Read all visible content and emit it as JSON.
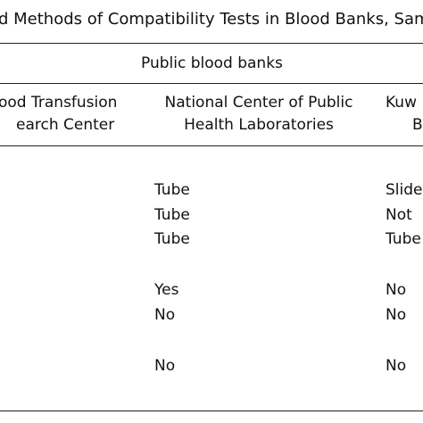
{
  "title": "d Methods of Compatibility Tests in Blood Banks, Sam",
  "group_header": "Public blood banks",
  "columns": [
    [
      "ood Transfusion",
      "earch Center"
    ],
    [
      "National Center of Public",
      "Health Laboratories"
    ],
    [
      "Kuw",
      "B"
    ]
  ],
  "row_groups": [
    [
      [
        "Tube",
        "Slide"
      ],
      [
        "Tube",
        "Not"
      ],
      [
        "Tube",
        "Tube"
      ]
    ],
    [
      [
        "Yes",
        "No"
      ],
      [
        "No",
        "No"
      ]
    ],
    [
      [
        "No",
        "No"
      ]
    ]
  ]
}
